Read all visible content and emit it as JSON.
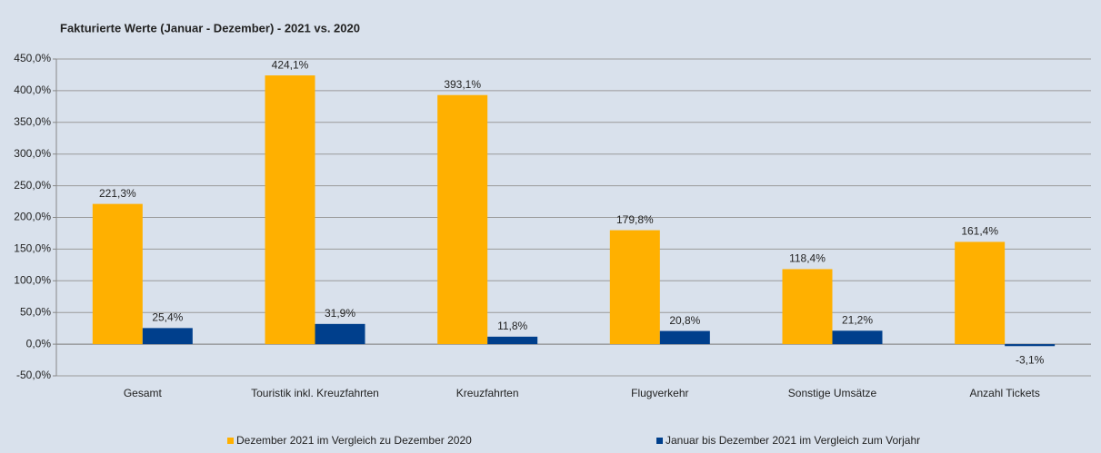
{
  "chart_data": {
    "type": "bar",
    "title": "Fakturierte Werte (Januar - Dezember) - 2021 vs. 2020",
    "categories": [
      "Gesamt",
      "Touristik inkl. Kreuzfahrten",
      "Kreuzfahrten",
      "Flugverkehr",
      "Sonstige Umsätze",
      "Anzahl Tickets"
    ],
    "series": [
      {
        "name": "Dezember 2021 im Vergleich zu Dezember 2020",
        "color": "#ffb000",
        "values": [
          221.3,
          424.1,
          393.1,
          179.8,
          118.4,
          161.4
        ],
        "value_labels": [
          "221,3%",
          "424,1%",
          "393,1%",
          "179,8%",
          "118,4%",
          "161,4%"
        ]
      },
      {
        "name": "Januar bis Dezember 2021 im Vergleich zum Vorjahr",
        "color": "#003f8c",
        "values": [
          25.4,
          31.9,
          11.8,
          20.8,
          21.2,
          -3.1
        ],
        "value_labels": [
          "25,4%",
          "31,9%",
          "11,8%",
          "20,8%",
          "21,2%",
          "-3,1%"
        ]
      }
    ],
    "ylim": [
      -50,
      450
    ],
    "yticks": [
      {
        "value": -50,
        "label": "-50,0%"
      },
      {
        "value": 0,
        "label": "0,0%"
      },
      {
        "value": 50,
        "label": "50,0%"
      },
      {
        "value": 100,
        "label": "100,0%"
      },
      {
        "value": 150,
        "label": "150,0%"
      },
      {
        "value": 200,
        "label": "200,0%"
      },
      {
        "value": 250,
        "label": "250,0%"
      },
      {
        "value": 300,
        "label": "300,0%"
      },
      {
        "value": 350,
        "label": "350,0%"
      },
      {
        "value": 400,
        "label": "400,0%"
      },
      {
        "value": 450,
        "label": "450,0%"
      }
    ],
    "grid": true,
    "legend": "bottom"
  }
}
